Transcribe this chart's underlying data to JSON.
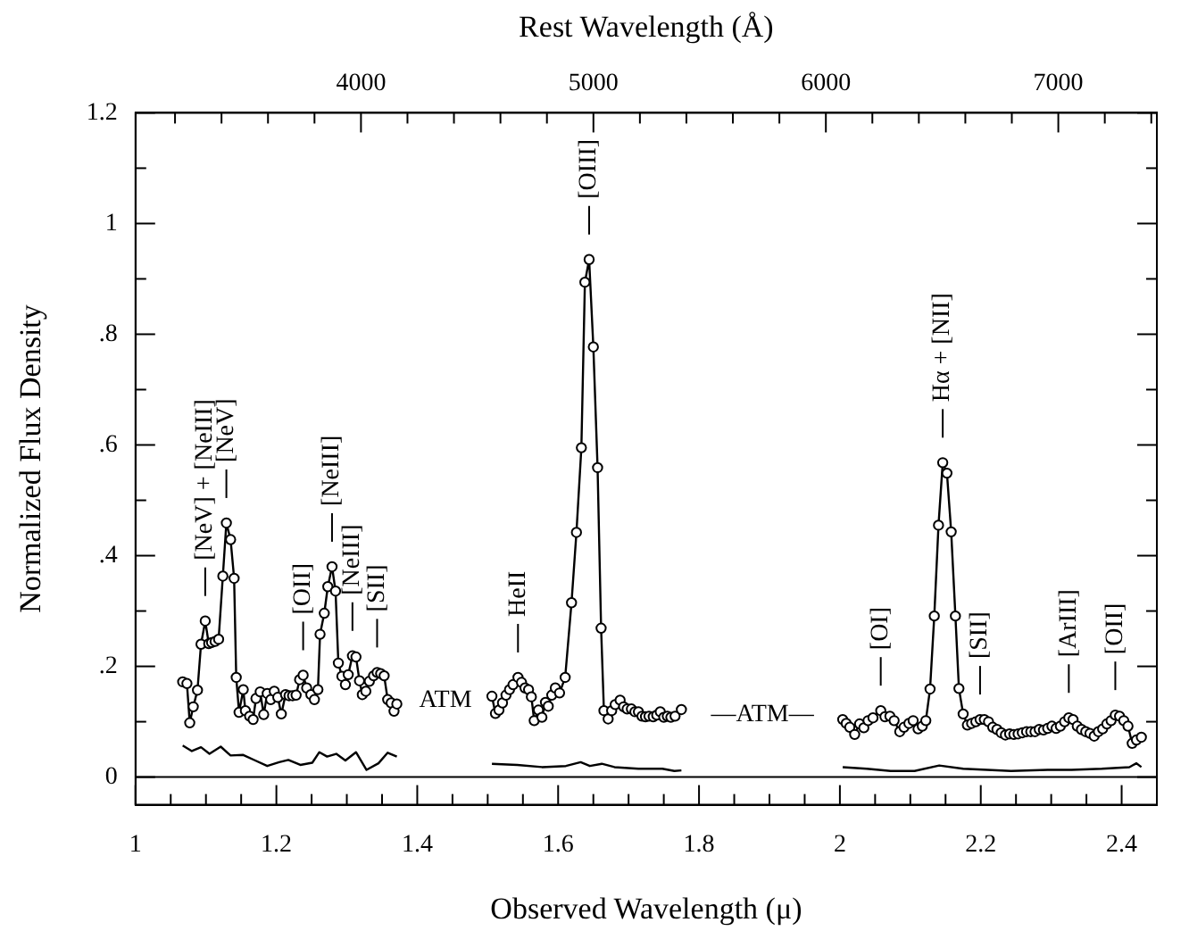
{
  "chart_data": {
    "type": "line",
    "xlabel": "Observed Wavelength (μ)",
    "ylabel": "Normalized Flux Density",
    "x2label": "Rest Wavelength (Å)",
    "xlim": [
      1,
      2.45
    ],
    "ylim": [
      -0.05,
      1.2
    ],
    "x2lim": [
      3030,
      7424
    ],
    "xticks": [
      1,
      {
        "value": 1.05,
        "label": null
      },
      {
        "value": 1.1,
        "label": null
      },
      {
        "value": 1.15,
        "label": null
      },
      1.2,
      {
        "value": 1.25,
        "label": null
      },
      {
        "value": 1.3,
        "label": null
      },
      {
        "value": 1.35,
        "label": null
      },
      1.4,
      {
        "value": 1.45,
        "label": null
      },
      {
        "value": 1.5,
        "label": null
      },
      {
        "value": 1.55,
        "label": null
      },
      1.6,
      {
        "value": 1.65,
        "label": null
      },
      {
        "value": 1.7,
        "label": null
      },
      {
        "value": 1.75,
        "label": null
      },
      1.8,
      {
        "value": 1.85,
        "label": null
      },
      {
        "value": 1.9,
        "label": null
      },
      {
        "value": 1.95,
        "label": null
      },
      2,
      {
        "value": 2.05,
        "label": null
      },
      {
        "value": 2.1,
        "label": null
      },
      {
        "value": 2.15,
        "label": null
      },
      2.2,
      {
        "value": 2.25,
        "label": null
      },
      {
        "value": 2.3,
        "label": null
      },
      {
        "value": 2.35,
        "label": null
      },
      2.4,
      {
        "value": 2.45,
        "label": null
      }
    ],
    "yticks": [
      0,
      {
        "value": 0.1,
        "label": null
      },
      {
        "value": 0.2,
        "label": ".2"
      },
      {
        "value": 0.3,
        "label": null
      },
      {
        "value": 0.4,
        "label": ".4"
      },
      {
        "value": 0.5,
        "label": null
      },
      {
        "value": 0.6,
        "label": ".6"
      },
      {
        "value": 0.7,
        "label": null
      },
      {
        "value": 0.8,
        "label": ".8"
      },
      {
        "value": 0.9,
        "label": null
      },
      1,
      {
        "value": 1.1,
        "label": null
      },
      1.2
    ],
    "x2ticks": [
      {
        "value": 3200,
        "label": null
      },
      {
        "value": 3400,
        "label": null
      },
      {
        "value": 3600,
        "label": null
      },
      {
        "value": 3800,
        "label": null
      },
      4000,
      {
        "value": 4200,
        "label": null
      },
      {
        "value": 4400,
        "label": null
      },
      {
        "value": 4600,
        "label": null
      },
      {
        "value": 4800,
        "label": null
      },
      5000,
      {
        "value": 5200,
        "label": null
      },
      {
        "value": 5400,
        "label": null
      },
      {
        "value": 5600,
        "label": null
      },
      {
        "value": 5800,
        "label": null
      },
      6000,
      {
        "value": 6200,
        "label": null
      },
      {
        "value": 6400,
        "label": null
      },
      {
        "value": 6600,
        "label": null
      },
      {
        "value": 6800,
        "label": null
      },
      7000,
      {
        "value": 7200,
        "label": null
      },
      {
        "value": 7400,
        "label": null
      }
    ],
    "grid": false,
    "legend": false,
    "marker": "circle",
    "line_style": "solid",
    "ref_lines": [
      {
        "axis": "y",
        "value": 0,
        "color": "#000000"
      }
    ],
    "series": [
      {
        "color": "#000000",
        "x": [
          1.067,
          1.073,
          1.077,
          1.082,
          1.088,
          1.093,
          1.099,
          1.104,
          1.108,
          1.113,
          1.118,
          1.124,
          1.129,
          1.135,
          1.14,
          1.143,
          1.147,
          1.153,
          1.156,
          1.162,
          1.167,
          1.171,
          1.177,
          1.182,
          1.187,
          1.192,
          1.197,
          1.202,
          1.207,
          1.213,
          1.218,
          1.223,
          1.228,
          1.233,
          1.238,
          1.243,
          1.249,
          1.254,
          1.259,
          1.262,
          1.268,
          1.273,
          1.279,
          1.284,
          1.288,
          1.293,
          1.298,
          1.302,
          1.308,
          1.313,
          1.318,
          1.322,
          1.327,
          1.332,
          1.338,
          1.343,
          1.348,
          1.353,
          1.358,
          1.363,
          1.367,
          1.371,
          1.44,
          1.506,
          1.511,
          1.516,
          1.521,
          1.526,
          1.531,
          1.536,
          1.543,
          1.548,
          1.553,
          1.558,
          1.562,
          1.566,
          1.572,
          1.577,
          1.582,
          1.586,
          1.591,
          1.596,
          1.602,
          1.61,
          1.619,
          1.626,
          1.633,
          1.638,
          1.644,
          1.65,
          1.656,
          1.661,
          1.665,
          1.671,
          1.676,
          1.681,
          1.688,
          1.693,
          1.698,
          1.704,
          1.709,
          1.714,
          1.719,
          1.724,
          1.729,
          1.735,
          1.74,
          1.745,
          1.75,
          1.755,
          1.76,
          1.766,
          1.775,
          1.89,
          2.004,
          2.009,
          2.014,
          2.021,
          2.028,
          2.034,
          2.04,
          2.047,
          2.058,
          2.064,
          2.071,
          2.077,
          2.085,
          2.091,
          2.098,
          2.104,
          2.111,
          2.117,
          2.122,
          2.128,
          2.134,
          2.14,
          2.146,
          2.152,
          2.158,
          2.164,
          2.169,
          2.175,
          2.181,
          2.187,
          2.193,
          2.199,
          2.205,
          2.211,
          2.217,
          2.223,
          2.229,
          2.235,
          2.241,
          2.247,
          2.253,
          2.259,
          2.265,
          2.271,
          2.277,
          2.283,
          2.289,
          2.295,
          2.301,
          2.307,
          2.313,
          2.319,
          2.325,
          2.331,
          2.337,
          2.343,
          2.349,
          2.355,
          2.361,
          2.367,
          2.373,
          2.379,
          2.385,
          2.391,
          2.397,
          2.403,
          2.409,
          2.415,
          2.421,
          2.428
        ],
        "values": [
          0.172,
          0.169,
          0.098,
          0.127,
          0.157,
          0.24,
          0.282,
          0.241,
          0.243,
          0.245,
          0.249,
          0.363,
          0.459,
          0.429,
          0.359,
          0.18,
          0.117,
          0.158,
          0.12,
          0.11,
          0.104,
          0.142,
          0.154,
          0.113,
          0.151,
          0.14,
          0.155,
          0.144,
          0.114,
          0.149,
          0.147,
          0.147,
          0.148,
          0.176,
          0.184,
          0.161,
          0.149,
          0.14,
          0.158,
          0.258,
          0.296,
          0.344,
          0.38,
          0.336,
          0.206,
          0.182,
          0.167,
          0.185,
          0.219,
          0.217,
          0.174,
          0.149,
          0.155,
          0.173,
          0.183,
          0.189,
          0.187,
          0.183,
          0.14,
          0.134,
          0.119,
          0.132,
          null,
          0.146,
          0.115,
          0.121,
          0.134,
          0.148,
          0.158,
          0.167,
          0.18,
          0.171,
          0.161,
          0.158,
          0.145,
          0.102,
          0.121,
          0.108,
          0.135,
          0.128,
          0.148,
          0.161,
          0.152,
          0.18,
          0.315,
          0.442,
          0.595,
          0.894,
          0.935,
          0.777,
          0.559,
          0.269,
          0.12,
          0.105,
          0.12,
          0.131,
          0.139,
          0.127,
          0.123,
          0.123,
          0.118,
          0.118,
          0.11,
          0.109,
          0.11,
          0.109,
          0.112,
          0.118,
          0.108,
          0.11,
          0.108,
          0.11,
          0.122,
          null,
          0.104,
          0.097,
          0.09,
          0.077,
          0.096,
          0.089,
          0.102,
          0.107,
          0.12,
          0.109,
          0.11,
          0.102,
          0.082,
          0.09,
          0.097,
          0.102,
          0.087,
          0.092,
          0.102,
          0.159,
          0.291,
          0.455,
          0.568,
          0.549,
          0.443,
          0.291,
          0.16,
          0.114,
          0.094,
          0.097,
          0.1,
          0.104,
          0.104,
          0.1,
          0.09,
          0.086,
          0.08,
          0.076,
          0.078,
          0.077,
          0.078,
          0.08,
          0.082,
          0.082,
          0.082,
          0.086,
          0.085,
          0.088,
          0.092,
          0.088,
          0.092,
          0.1,
          0.107,
          0.104,
          0.092,
          0.086,
          0.082,
          0.079,
          0.074,
          0.082,
          0.087,
          0.096,
          0.102,
          0.112,
          0.11,
          0.102,
          0.092,
          0.061,
          0.067,
          0.072
        ]
      },
      {
        "color": "#000000",
        "marker": "none",
        "x": [
          1.067,
          1.08,
          1.093,
          1.105,
          1.121,
          1.135,
          1.153,
          1.17,
          1.187,
          1.204,
          1.217,
          1.234,
          1.251,
          1.261,
          1.272,
          1.285,
          1.298,
          1.313,
          1.328,
          1.345,
          1.358,
          1.371,
          1.44,
          1.506,
          1.542,
          1.577,
          1.611,
          1.632,
          1.645,
          1.662,
          1.68,
          1.714,
          1.748,
          1.765,
          1.775,
          1.89,
          2.004,
          2.038,
          2.072,
          2.106,
          2.141,
          2.175,
          2.209,
          2.243,
          2.295,
          2.329,
          2.372,
          2.411,
          2.421,
          2.428
        ],
        "values": [
          0.057,
          0.047,
          0.054,
          0.042,
          0.055,
          0.039,
          0.04,
          0.03,
          0.02,
          0.027,
          0.031,
          0.022,
          0.026,
          0.045,
          0.037,
          0.042,
          0.03,
          0.045,
          0.013,
          0.025,
          0.044,
          0.037,
          null,
          0.024,
          0.022,
          0.018,
          0.02,
          0.027,
          0.02,
          0.024,
          0.018,
          0.015,
          0.015,
          0.011,
          0.012,
          null,
          0.018,
          0.015,
          0.011,
          0.011,
          0.021,
          0.015,
          0.013,
          0.011,
          0.013,
          0.013,
          0.015,
          0.018,
          0.025,
          0.018
        ]
      }
    ],
    "annotations": [
      {
        "text": "[NeV] + [NeIII]",
        "x": 1.099,
        "y": 0.282
      },
      {
        "text": "[NeV]",
        "x": 1.129,
        "y": 0.459
      },
      {
        "text": "[OII]",
        "x": 1.238,
        "y": 0.184
      },
      {
        "text": "[NeIII]",
        "x": 1.279,
        "y": 0.38
      },
      {
        "text": "[NeIII]",
        "x": 1.308,
        "y": 0.219
      },
      {
        "text": "[SII]",
        "x": 1.343,
        "y": 0.189
      },
      {
        "text": "HeII",
        "x": 1.543,
        "y": 0.18
      },
      {
        "text": "[OIII]",
        "x": 1.644,
        "y": 0.935
      },
      {
        "text": "Hα + [NII]",
        "x": 2.146,
        "y": 0.568
      },
      {
        "text": "[OI]",
        "x": 2.058,
        "y": 0.12
      },
      {
        "text": "[SII]",
        "x": 2.199,
        "y": 0.104
      },
      {
        "text": "[ArIII]",
        "x": 2.325,
        "y": 0.107
      },
      {
        "text": "[OII]",
        "x": 2.391,
        "y": 0.112
      },
      "ATM",
      "—ATM—"
    ]
  }
}
